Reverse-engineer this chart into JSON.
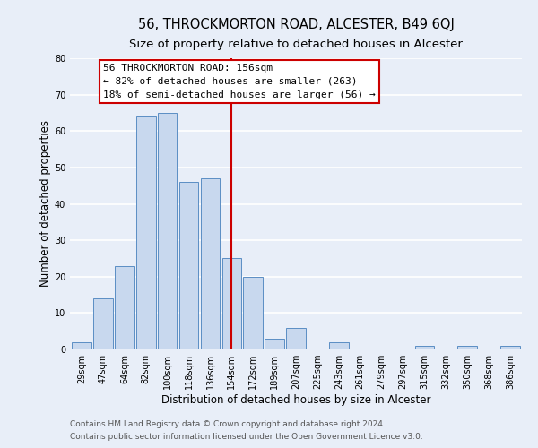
{
  "title": "56, THROCKMORTON ROAD, ALCESTER, B49 6QJ",
  "subtitle": "Size of property relative to detached houses in Alcester",
  "xlabel": "Distribution of detached houses by size in Alcester",
  "ylabel": "Number of detached properties",
  "bin_labels": [
    "29sqm",
    "47sqm",
    "64sqm",
    "82sqm",
    "100sqm",
    "118sqm",
    "136sqm",
    "154sqm",
    "172sqm",
    "189sqm",
    "207sqm",
    "225sqm",
    "243sqm",
    "261sqm",
    "279sqm",
    "297sqm",
    "315sqm",
    "332sqm",
    "350sqm",
    "368sqm",
    "386sqm"
  ],
  "bar_values": [
    2,
    14,
    23,
    64,
    65,
    46,
    47,
    25,
    20,
    3,
    6,
    0,
    2,
    0,
    0,
    0,
    1,
    0,
    1,
    0,
    1
  ],
  "bar_color": "#c8d8ee",
  "bar_edge_color": "#5b8ec4",
  "vline_x_index": 7,
  "vline_color": "#cc0000",
  "annotation_lines": [
    "56 THROCKMORTON ROAD: 156sqm",
    "← 82% of detached houses are smaller (263)",
    "18% of semi-detached houses are larger (56) →"
  ],
  "annotation_box_color": "#ffffff",
  "annotation_box_edge": "#cc0000",
  "ylim": [
    0,
    80
  ],
  "yticks": [
    0,
    10,
    20,
    30,
    40,
    50,
    60,
    70,
    80
  ],
  "footnote1": "Contains HM Land Registry data © Crown copyright and database right 2024.",
  "footnote2": "Contains public sector information licensed under the Open Government Licence v3.0.",
  "bg_color": "#e8eef8",
  "grid_color": "#ffffff",
  "title_fontsize": 10.5,
  "subtitle_fontsize": 9.5,
  "axis_label_fontsize": 8.5,
  "tick_fontsize": 7,
  "annotation_fontsize": 8,
  "footnote_fontsize": 6.5
}
